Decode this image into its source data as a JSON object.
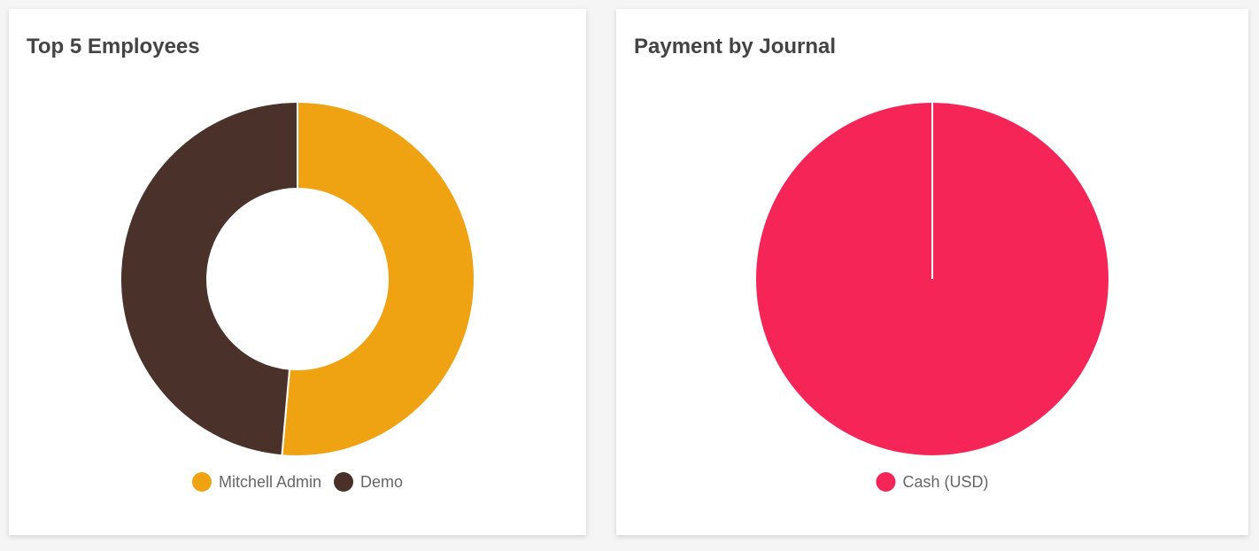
{
  "chart_data": [
    {
      "type": "doughnut",
      "title": "Top 5 Employees",
      "categories": [
        "Mitchell Admin",
        "Demo"
      ],
      "values": [
        51.4,
        48.6
      ],
      "colors": [
        "#efa313",
        "#4a3129"
      ]
    },
    {
      "type": "pie",
      "title": "Payment by Journal",
      "categories": [
        "Cash (USD)"
      ],
      "values": [
        100
      ],
      "colors": [
        "#f52557"
      ]
    }
  ]
}
